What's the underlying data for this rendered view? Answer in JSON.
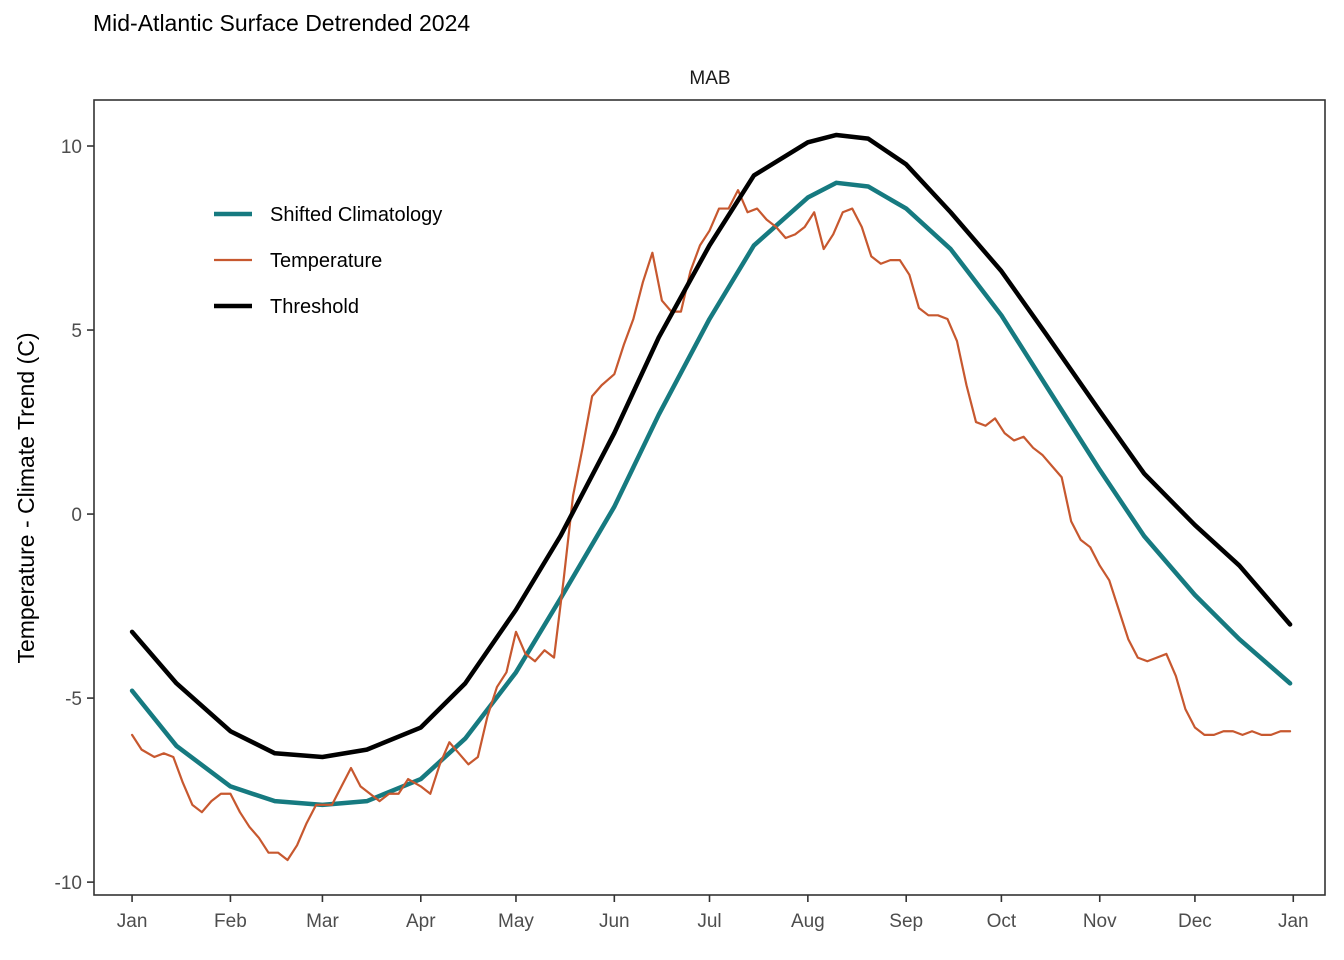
{
  "chart_data": {
    "type": "line",
    "title": "Mid-Atlantic Surface Detrended 2024",
    "panel_label": "MAB",
    "xlabel": "",
    "ylabel": "Temperature - Climate Trend (C)",
    "x_tick_labels": [
      "Jan",
      "Feb",
      "Mar",
      "Apr",
      "May",
      "Jun",
      "Jul",
      "Aug",
      "Sep",
      "Oct",
      "Nov",
      "Dec",
      "Jan"
    ],
    "x_tick_dates": [
      "2024-01-01",
      "2024-02-01",
      "2024-03-01",
      "2024-04-01",
      "2024-05-01",
      "2024-06-01",
      "2024-07-01",
      "2024-08-01",
      "2024-09-01",
      "2024-10-01",
      "2024-11-01",
      "2024-12-01",
      "2025-01-01"
    ],
    "y_ticks": [
      -10,
      -5,
      0,
      5,
      10
    ],
    "y_tick_labels": [
      "-10",
      "-5",
      "0",
      "5",
      "10"
    ],
    "xlim": [
      "2023-12-20",
      "2025-01-11"
    ],
    "ylim": [
      -10.35,
      11.25
    ],
    "grid": false,
    "legend_position": "top-left",
    "series": [
      {
        "name": "Shifted Climatology",
        "color": "#167a80",
        "dates": [
          "2024-01-01",
          "2024-01-15",
          "2024-02-01",
          "2024-02-15",
          "2024-03-01",
          "2024-03-15",
          "2024-04-01",
          "2024-04-15",
          "2024-05-01",
          "2024-05-15",
          "2024-06-01",
          "2024-06-15",
          "2024-07-01",
          "2024-07-15",
          "2024-08-01",
          "2024-08-10",
          "2024-08-20",
          "2024-09-01",
          "2024-09-15",
          "2024-10-01",
          "2024-10-15",
          "2024-11-01",
          "2024-11-15",
          "2024-12-01",
          "2024-12-15",
          "2024-12-31"
        ],
        "values": [
          -4.8,
          -6.3,
          -7.4,
          -7.8,
          -7.9,
          -7.8,
          -7.2,
          -6.1,
          -4.3,
          -2.3,
          0.2,
          2.7,
          5.3,
          7.3,
          8.6,
          9.0,
          8.9,
          8.3,
          7.2,
          5.4,
          3.5,
          1.2,
          -0.6,
          -2.2,
          -3.4,
          -4.6
        ]
      },
      {
        "name": "Temperature",
        "color": "#c7582f",
        "dates": [
          "2024-01-01",
          "2024-01-04",
          "2024-01-08",
          "2024-01-11",
          "2024-01-14",
          "2024-01-17",
          "2024-01-20",
          "2024-01-23",
          "2024-01-26",
          "2024-01-29",
          "2024-02-01",
          "2024-02-04",
          "2024-02-07",
          "2024-02-10",
          "2024-02-13",
          "2024-02-16",
          "2024-02-19",
          "2024-02-22",
          "2024-02-25",
          "2024-02-28",
          "2024-03-01",
          "2024-03-04",
          "2024-03-07",
          "2024-03-10",
          "2024-03-13",
          "2024-03-16",
          "2024-03-19",
          "2024-03-22",
          "2024-03-25",
          "2024-03-28",
          "2024-04-01",
          "2024-04-04",
          "2024-04-07",
          "2024-04-10",
          "2024-04-13",
          "2024-04-16",
          "2024-04-19",
          "2024-04-22",
          "2024-04-25",
          "2024-04-28",
          "2024-05-01",
          "2024-05-04",
          "2024-05-07",
          "2024-05-10",
          "2024-05-13",
          "2024-05-16",
          "2024-05-19",
          "2024-05-22",
          "2024-05-25",
          "2024-05-28",
          "2024-06-01",
          "2024-06-04",
          "2024-06-07",
          "2024-06-10",
          "2024-06-13",
          "2024-06-16",
          "2024-06-19",
          "2024-06-22",
          "2024-06-25",
          "2024-06-28",
          "2024-07-01",
          "2024-07-04",
          "2024-07-07",
          "2024-07-10",
          "2024-07-13",
          "2024-07-16",
          "2024-07-19",
          "2024-07-22",
          "2024-07-25",
          "2024-07-28",
          "2024-07-31",
          "2024-08-03",
          "2024-08-06",
          "2024-08-09",
          "2024-08-12",
          "2024-08-15",
          "2024-08-18",
          "2024-08-21",
          "2024-08-24",
          "2024-08-27",
          "2024-08-30",
          "2024-09-02",
          "2024-09-05",
          "2024-09-08",
          "2024-09-11",
          "2024-09-14",
          "2024-09-17",
          "2024-09-20",
          "2024-09-23",
          "2024-09-26",
          "2024-09-29",
          "2024-10-02",
          "2024-10-05",
          "2024-10-08",
          "2024-10-11",
          "2024-10-14",
          "2024-10-17",
          "2024-10-20",
          "2024-10-23",
          "2024-10-26",
          "2024-10-29",
          "2024-11-01",
          "2024-11-04",
          "2024-11-07",
          "2024-11-10",
          "2024-11-13",
          "2024-11-16",
          "2024-11-19",
          "2024-11-22",
          "2024-11-25",
          "2024-11-28",
          "2024-12-01",
          "2024-12-04",
          "2024-12-07",
          "2024-12-10",
          "2024-12-13",
          "2024-12-16",
          "2024-12-19",
          "2024-12-22",
          "2024-12-25",
          "2024-12-28",
          "2024-12-31"
        ],
        "values": [
          -6.0,
          -6.4,
          -6.6,
          -6.5,
          -6.6,
          -7.3,
          -7.9,
          -8.1,
          -7.8,
          -7.6,
          -7.6,
          -8.1,
          -8.5,
          -8.8,
          -9.2,
          -9.2,
          -9.4,
          -9.0,
          -8.4,
          -7.9,
          -7.9,
          -7.9,
          -7.4,
          -6.9,
          -7.4,
          -7.6,
          -7.8,
          -7.6,
          -7.6,
          -7.2,
          -7.4,
          -7.6,
          -6.8,
          -6.2,
          -6.5,
          -6.8,
          -6.6,
          -5.5,
          -4.7,
          -4.3,
          -3.2,
          -3.8,
          -4.0,
          -3.7,
          -3.9,
          -1.8,
          0.5,
          1.8,
          3.2,
          3.5,
          3.8,
          4.6,
          5.3,
          6.3,
          7.1,
          5.8,
          5.5,
          5.5,
          6.6,
          7.3,
          7.7,
          8.3,
          8.3,
          8.8,
          8.2,
          8.3,
          8.0,
          7.8,
          7.5,
          7.6,
          7.8,
          8.2,
          7.2,
          7.6,
          8.2,
          8.3,
          7.8,
          7.0,
          6.8,
          6.9,
          6.9,
          6.5,
          5.6,
          5.4,
          5.4,
          5.3,
          4.7,
          3.5,
          2.5,
          2.4,
          2.6,
          2.2,
          2.0,
          2.1,
          1.8,
          1.6,
          1.3,
          1.0,
          -0.2,
          -0.7,
          -0.9,
          -1.4,
          -1.8,
          -2.6,
          -3.4,
          -3.9,
          -4.0,
          -3.9,
          -3.8,
          -4.4,
          -5.3,
          -5.8,
          -6.0,
          -6.0,
          -5.9,
          -5.9,
          -6.0,
          -5.9,
          -6.0,
          -6.0,
          -5.9,
          -5.9
        ]
      },
      {
        "name": "Threshold",
        "color": "#000000",
        "dates": [
          "2024-01-01",
          "2024-01-15",
          "2024-02-01",
          "2024-02-15",
          "2024-03-01",
          "2024-03-15",
          "2024-04-01",
          "2024-04-15",
          "2024-05-01",
          "2024-05-15",
          "2024-06-01",
          "2024-06-15",
          "2024-07-01",
          "2024-07-15",
          "2024-08-01",
          "2024-08-10",
          "2024-08-20",
          "2024-09-01",
          "2024-09-15",
          "2024-10-01",
          "2024-10-15",
          "2024-11-01",
          "2024-11-15",
          "2024-12-01",
          "2024-12-15",
          "2024-12-31"
        ],
        "values": [
          -3.2,
          -4.6,
          -5.9,
          -6.5,
          -6.6,
          -6.4,
          -5.8,
          -4.6,
          -2.6,
          -0.6,
          2.2,
          4.8,
          7.3,
          9.2,
          10.1,
          10.3,
          10.2,
          9.5,
          8.2,
          6.6,
          4.9,
          2.8,
          1.1,
          -0.3,
          -1.4,
          -3.0
        ]
      }
    ]
  }
}
